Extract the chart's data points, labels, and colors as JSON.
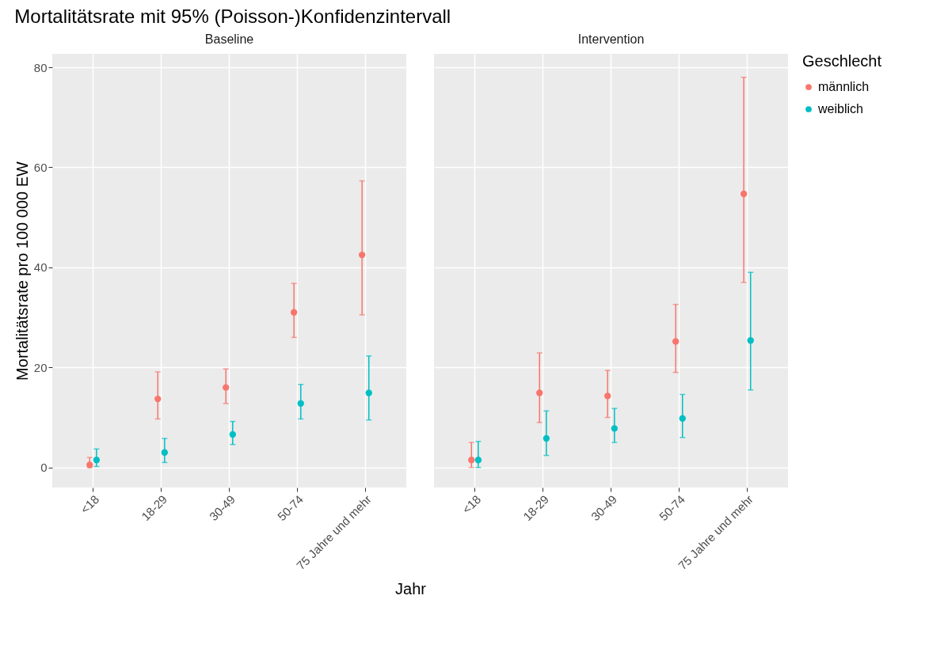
{
  "chart_data": [
    {
      "type": "scatter",
      "title": "Mortalitätsrate mit 95% (Poisson-)Konfidenzintervall",
      "subtitle": "Baseline",
      "xlabel": "Jahr",
      "ylabel": "Mortalitätsrate pro 100 000 EW",
      "categories": [
        "<18",
        "18-29",
        "30-49",
        "50-74",
        "75 Jahre und mehr"
      ],
      "series": [
        {
          "color": "#f8766d",
          "values": [
            0.5,
            13.7,
            16,
            31,
            42.5
          ],
          "errors": [
            [
              0,
              2
            ],
            [
              9.7,
              19.1
            ],
            [
              12.8,
              19.7
            ],
            [
              26,
              36.8
            ],
            [
              30.5,
              57.3
            ]
          ]
        },
        {
          "color": "#00bfc4",
          "values": [
            1.5,
            3,
            6.6,
            12.8,
            14.9
          ],
          "errors": [
            [
              0.2,
              3.7
            ],
            [
              1,
              5.8
            ],
            [
              4.6,
              9.2
            ],
            [
              9.7,
              16.6
            ],
            [
              9.5,
              22.3
            ]
          ]
        }
      ],
      "ylim": [
        -4,
        82.7
      ],
      "yticks": [
        0,
        20,
        40,
        60,
        80
      ],
      "grid": true,
      "marker": "circle"
    },
    {
      "type": "scatter",
      "subtitle": "Intervention",
      "legend_title": "Geschlecht",
      "categories": [
        "<18",
        "18-29",
        "30-49",
        "50-74",
        "75 Jahre und mehr"
      ],
      "series": [
        {
          "name": "männlich",
          "color": "#f8766d",
          "values": [
            1.5,
            14.9,
            14.3,
            25.2,
            54.7
          ],
          "errors": [
            [
              0,
              5
            ],
            [
              9,
              22.9
            ],
            [
              10,
              19.4
            ],
            [
              19,
              32.6
            ],
            [
              37,
              78
            ]
          ]
        },
        {
          "name": "weiblich",
          "color": "#00bfc4",
          "values": [
            1.5,
            5.8,
            7.8,
            9.8,
            25.4
          ],
          "errors": [
            [
              0,
              5.2
            ],
            [
              2.4,
              11.3
            ],
            [
              5,
              11.8
            ],
            [
              6,
              14.6
            ],
            [
              15.5,
              39
            ]
          ]
        }
      ],
      "ylim": [
        -4,
        82.7
      ],
      "yticks": [
        0,
        20,
        40,
        60,
        80
      ],
      "grid": true,
      "marker": "circle",
      "legend": "right",
      "tick_labels": "x"
    }
  ]
}
